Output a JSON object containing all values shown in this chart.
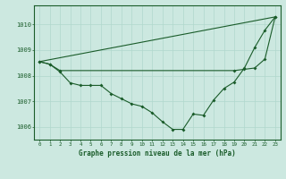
{
  "xlabel": "Graphe pression niveau de la mer (hPa)",
  "bg_color": "#cce8e0",
  "line_color": "#1a5c2a",
  "grid_color": "#b0d8cc",
  "x_ticks": [
    0,
    1,
    2,
    3,
    4,
    5,
    6,
    7,
    8,
    9,
    10,
    11,
    12,
    13,
    14,
    15,
    16,
    17,
    18,
    19,
    20,
    21,
    22,
    23
  ],
  "ylim": [
    1005.5,
    1010.75
  ],
  "yticks": [
    1006,
    1007,
    1008,
    1009,
    1010
  ],
  "line1_x": [
    0,
    23
  ],
  "line1_y": [
    1008.55,
    1010.3
  ],
  "line2_x": [
    0,
    1,
    2,
    19,
    20,
    21,
    22,
    23
  ],
  "line2_y": [
    1008.55,
    1008.45,
    1008.2,
    1008.2,
    1008.25,
    1008.3,
    1008.65,
    1010.3
  ],
  "line3_x": [
    0,
    1,
    2,
    3,
    4,
    5,
    6,
    7,
    8,
    9,
    10,
    11,
    12,
    13,
    14,
    15,
    16,
    17,
    18,
    19,
    20,
    21,
    22,
    23
  ],
  "line3_y": [
    1008.55,
    1008.45,
    1008.15,
    1007.72,
    1007.62,
    1007.62,
    1007.62,
    1007.3,
    1007.1,
    1006.9,
    1006.8,
    1006.55,
    1006.2,
    1005.9,
    1005.9,
    1006.5,
    1006.45,
    1007.05,
    1007.5,
    1007.75,
    1008.3,
    1009.1,
    1009.78,
    1010.3
  ]
}
